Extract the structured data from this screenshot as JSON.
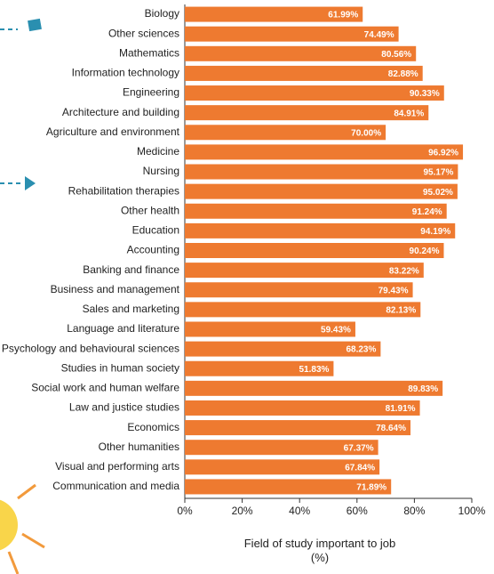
{
  "chart_data": {
    "type": "bar",
    "orientation": "horizontal",
    "x_label": "Field of study important to job (%)",
    "categories": [
      "Biology",
      "Other sciences",
      "Mathematics",
      "Information technology",
      "Engineering",
      "Architecture and building",
      "Agriculture and environment",
      "Medicine",
      "Nursing",
      "Rehabilitation therapies",
      "Other health",
      "Education",
      "Accounting",
      "Banking and finance",
      "Business and management",
      "Sales and marketing",
      "Language and literature",
      "Psychology and behavioural sciences",
      "Studies in human society",
      "Social work and human welfare",
      "Law and justice studies",
      "Economics",
      "Other humanities",
      "Visual and performing arts",
      "Communication and media"
    ],
    "values": [
      61.99,
      74.49,
      80.56,
      82.88,
      90.33,
      84.91,
      70.0,
      96.92,
      95.17,
      95.02,
      91.24,
      94.19,
      90.24,
      83.22,
      79.43,
      82.13,
      59.43,
      68.23,
      51.83,
      89.83,
      81.91,
      78.64,
      67.37,
      67.84,
      71.89
    ],
    "value_labels": [
      "61.99%",
      "74.49%",
      "80.56%",
      "82.88%",
      "90.33%",
      "84.91%",
      "70.00%",
      "96.92%",
      "95.17%",
      "95.02%",
      "91.24%",
      "94.19%",
      "90.24%",
      "83.22%",
      "79.43%",
      "82.13%",
      "59.43%",
      "68.23%",
      "51.83%",
      "89.83%",
      "81.91%",
      "78.64%",
      "67.37%",
      "67.84%",
      "71.89%"
    ],
    "color": "#ee7a30",
    "xlim": [
      0,
      100
    ],
    "xticks": [
      {
        "value": 0,
        "label": "0%"
      },
      {
        "value": 20,
        "label": "20%"
      },
      {
        "value": 40,
        "label": "40%"
      },
      {
        "value": 60,
        "label": "60%"
      },
      {
        "value": 80,
        "label": "80%"
      },
      {
        "value": 100,
        "label": "100%"
      }
    ]
  }
}
